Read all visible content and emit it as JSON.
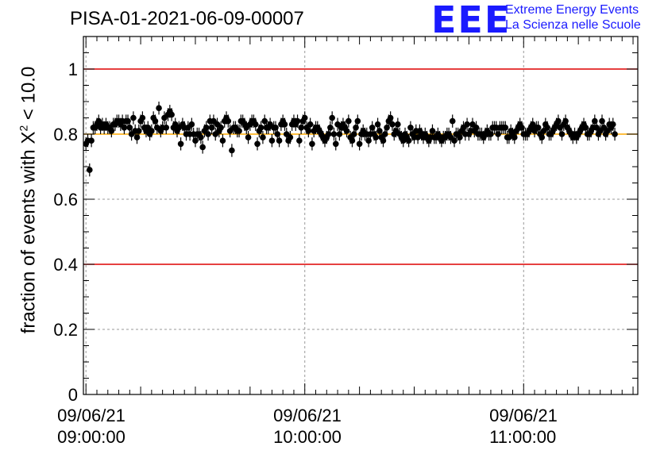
{
  "title": "PISA-01-2021-06-09-00007",
  "logo": {
    "mark": "EEE",
    "line1": "Extreme Energy Events",
    "line2": "La Scienza nelle Scuole",
    "color": "#1a1aff"
  },
  "chart_data": {
    "type": "scatter",
    "title": "PISA-01-2021-06-09-00007",
    "ylabel": "fraction of events with χ² < 10.0",
    "ylabel_main": "fraction of events with X",
    "ylabel_sup": "2",
    "ylabel_tail": " < 10.0",
    "xlabel": "",
    "x_ticks": [
      {
        "date": "09/06/21",
        "time": "09:00:00"
      },
      {
        "date": "09/06/21",
        "time": "10:00:00"
      },
      {
        "date": "09/06/21",
        "time": "11:00:00"
      }
    ],
    "x_unit": "minutes after 09:00:00",
    "xlim": [
      -0.7,
      151.3
    ],
    "ylim": [
      0,
      1.1
    ],
    "y_ticks": [
      "0",
      "0.2",
      "0.4",
      "0.6",
      "0.8",
      "1"
    ],
    "grid": true,
    "reference_lines": [
      {
        "y": 1.0,
        "color": "#dd0000"
      },
      {
        "y": 0.4,
        "color": "#dd0000"
      },
      {
        "y": 0.8,
        "color": "#ffaa00"
      }
    ],
    "marker_color": "#000000",
    "error": 0.02,
    "x_step": 0.5,
    "values": [
      0.77,
      0.78,
      0.69,
      0.78,
      0.82,
      0.82,
      0.83,
      0.84,
      0.82,
      0.83,
      0.82,
      0.83,
      0.82,
      0.82,
      0.81,
      0.83,
      0.83,
      0.84,
      0.84,
      0.83,
      0.84,
      0.82,
      0.84,
      0.84,
      0.82,
      0.8,
      0.85,
      0.81,
      0.79,
      0.81,
      0.84,
      0.85,
      0.82,
      0.81,
      0.82,
      0.8,
      0.81,
      0.85,
      0.84,
      0.82,
      0.88,
      0.81,
      0.82,
      0.85,
      0.82,
      0.86,
      0.87,
      0.86,
      0.82,
      0.83,
      0.81,
      0.82,
      0.77,
      0.83,
      0.82,
      0.8,
      0.82,
      0.8,
      0.83,
      0.8,
      0.78,
      0.8,
      0.8,
      0.79,
      0.76,
      0.81,
      0.82,
      0.8,
      0.84,
      0.82,
      0.84,
      0.8,
      0.83,
      0.81,
      0.82,
      0.78,
      0.84,
      0.85,
      0.84,
      0.81,
      0.75,
      0.82,
      0.82,
      0.81,
      0.81,
      0.84,
      0.84,
      0.83,
      0.82,
      0.79,
      0.83,
      0.84,
      0.84,
      0.83,
      0.77,
      0.81,
      0.82,
      0.79,
      0.84,
      0.82,
      0.82,
      0.83,
      0.78,
      0.82,
      0.82,
      0.8,
      0.78,
      0.83,
      0.84,
      0.83,
      0.8,
      0.78,
      0.79,
      0.83,
      0.84,
      0.83,
      0.84,
      0.78,
      0.82,
      0.84,
      0.85,
      0.82,
      0.81,
      0.83,
      0.77,
      0.81,
      0.82,
      0.82,
      0.81,
      0.8,
      0.79,
      0.78,
      0.79,
      0.8,
      0.82,
      0.85,
      0.8,
      0.77,
      0.83,
      0.8,
      0.82,
      0.83,
      0.82,
      0.81,
      0.84,
      0.79,
      0.78,
      0.8,
      0.82,
      0.84,
      0.77,
      0.8,
      0.81,
      0.8,
      0.8,
      0.78,
      0.8,
      0.82,
      0.8,
      0.79,
      0.83,
      0.81,
      0.79,
      0.78,
      0.8,
      0.82,
      0.84,
      0.85,
      0.83,
      0.8,
      0.81,
      0.83,
      0.8,
      0.79,
      0.78,
      0.8,
      0.79,
      0.78,
      0.82,
      0.8,
      0.79,
      0.81,
      0.79,
      0.81,
      0.8,
      0.79,
      0.8,
      0.79,
      0.78,
      0.79,
      0.81,
      0.79,
      0.79,
      0.8,
      0.79,
      0.78,
      0.79,
      0.79,
      0.8,
      0.8,
      0.79,
      0.84,
      0.78,
      0.8,
      0.8,
      0.79,
      0.81,
      0.82,
      0.8,
      0.83,
      0.8,
      0.81,
      0.83,
      0.81,
      0.82,
      0.8,
      0.8,
      0.8,
      0.79,
      0.8,
      0.81,
      0.8,
      0.8,
      0.82,
      0.82,
      0.82,
      0.8,
      0.82,
      0.82,
      0.82,
      0.82,
      0.79,
      0.79,
      0.81,
      0.8,
      0.79,
      0.81,
      0.82,
      0.83,
      0.82,
      0.8,
      0.8,
      0.8,
      0.81,
      0.82,
      0.83,
      0.81,
      0.82,
      0.82,
      0.8,
      0.79,
      0.81,
      0.83,
      0.82,
      0.8,
      0.8,
      0.81,
      0.82,
      0.83,
      0.84,
      0.82,
      0.8,
      0.83,
      0.84,
      0.82,
      0.81,
      0.8,
      0.79,
      0.8,
      0.79,
      0.8,
      0.81,
      0.82,
      0.83,
      0.82,
      0.8,
      0.8,
      0.81,
      0.82,
      0.84,
      0.82,
      0.8,
      0.81,
      0.84,
      0.82,
      0.8,
      0.81,
      0.83,
      0.82,
      0.83,
      0.8
    ]
  }
}
